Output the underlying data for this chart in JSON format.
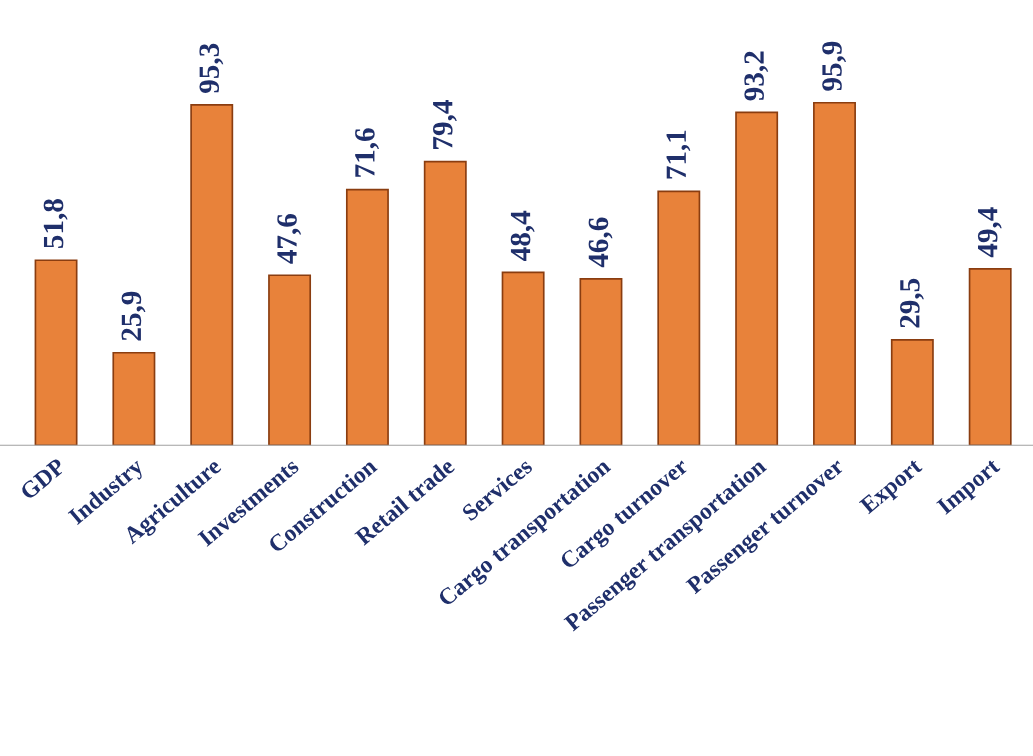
{
  "chart_data": {
    "type": "bar",
    "categories": [
      "GDP",
      "Industry",
      "Agriculture",
      "Investments",
      "Construction",
      "Retail trade",
      "Services",
      "Cargo transportation",
      "Cargo turnover",
      "Passenger transportation",
      "Passenger turnover",
      "Export",
      "Import"
    ],
    "values": [
      51.8,
      25.9,
      95.3,
      47.6,
      71.6,
      79.4,
      48.4,
      46.6,
      71.1,
      93.2,
      95.9,
      29.5,
      49.4
    ],
    "value_labels": [
      "51,8",
      "25,9",
      "95,3",
      "47,6",
      "71,6",
      "79,4",
      "48,4",
      "46,6",
      "71,1",
      "93,2",
      "95,9",
      "29,5",
      "49,4"
    ],
    "color": "#e8823a",
    "grid": false,
    "legend": false
  }
}
